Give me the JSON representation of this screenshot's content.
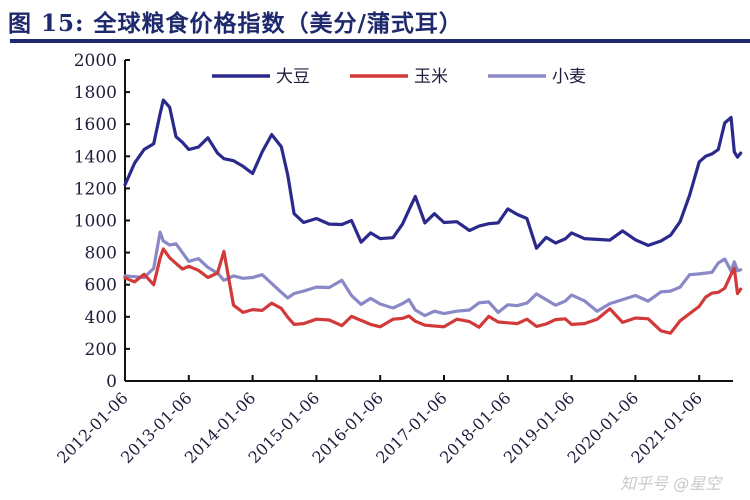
{
  "header": {
    "title": "图 15:  全球粮食价格指数（美分/蒲式耳）"
  },
  "watermark": "知乎号 @星空",
  "chart_data": {
    "type": "line",
    "title": "图 15: 全球粮食价格指数（美分/蒲式耳）",
    "xlabel": "",
    "ylabel": "美分/蒲式耳",
    "ylim": [
      0,
      2000
    ],
    "yticks": [
      0,
      200,
      400,
      600,
      800,
      1000,
      1200,
      1400,
      1600,
      1800,
      2000
    ],
    "xtick_labels": [
      "2012-01-06",
      "2013-01-06",
      "2014-01-06",
      "2015-01-06",
      "2016-01-06",
      "2017-01-06",
      "2018-01-06",
      "2019-01-06",
      "2020-01-06",
      "2021-01-06"
    ],
    "xlim": [
      2012.0,
      2021.65
    ],
    "grid": false,
    "legend_position": "top",
    "x": [
      2012.0,
      2012.15,
      2012.3,
      2012.45,
      2012.55,
      2012.6,
      2012.7,
      2012.8,
      2012.9,
      2013.0,
      2013.15,
      2013.3,
      2013.45,
      2013.55,
      2013.7,
      2013.85,
      2014.0,
      2014.15,
      2014.3,
      2014.45,
      2014.55,
      2014.65,
      2014.8,
      2015.0,
      2015.2,
      2015.4,
      2015.55,
      2015.7,
      2015.85,
      2016.0,
      2016.2,
      2016.35,
      2016.45,
      2016.55,
      2016.7,
      2016.85,
      2017.0,
      2017.2,
      2017.4,
      2017.55,
      2017.7,
      2017.85,
      2018.0,
      2018.15,
      2018.3,
      2018.45,
      2018.6,
      2018.75,
      2018.9,
      2019.0,
      2019.2,
      2019.4,
      2019.6,
      2019.8,
      2020.0,
      2020.2,
      2020.4,
      2020.55,
      2020.7,
      2020.85,
      2021.0,
      2021.1,
      2021.2,
      2021.3,
      2021.4,
      2021.5,
      2021.55,
      2021.6,
      2021.65
    ],
    "series": [
      {
        "name": "大豆",
        "color": "#2b2a8c",
        "values": [
          1200,
          1350,
          1450,
          1500,
          1650,
          1750,
          1720,
          1500,
          1480,
          1450,
          1480,
          1500,
          1420,
          1400,
          1350,
          1330,
          1300,
          1450,
          1520,
          1460,
          1300,
          1020,
          980,
          1020,
          1000,
          960,
          1000,
          880,
          900,
          880,
          900,
          1000,
          1050,
          1150,
          1000,
          1020,
          980,
          1000,
          960,
          950,
          980,
          1000,
          1050,
          1030,
          1020,
          850,
          880,
          860,
          900,
          900,
          880,
          890,
          900,
          920,
          880,
          860,
          850,
          900,
          1000,
          1180,
          1350,
          1400,
          1430,
          1420,
          1600,
          1650,
          1450,
          1380,
          1420
        ]
      },
      {
        "name": "玉米",
        "color": "#d23a3a",
        "values": [
          650,
          640,
          650,
          600,
          780,
          800,
          760,
          740,
          720,
          700,
          690,
          660,
          650,
          800,
          480,
          450,
          430,
          440,
          500,
          430,
          390,
          360,
          380,
          370,
          380,
          360,
          380,
          370,
          360,
          360,
          370,
          390,
          420,
          350,
          340,
          350,
          360,
          370,
          370,
          350,
          380,
          360,
          370,
          380,
          370,
          340,
          370,
          360,
          380,
          360,
          380,
          370,
          450,
          380,
          370,
          380,
          320,
          320,
          360,
          420,
          480,
          500,
          540,
          560,
          600,
          650,
          700,
          560,
          550
        ]
      },
      {
        "name": "小麦",
        "color": "#8a88c6",
        "values": [
          640,
          650,
          660,
          680,
          920,
          880,
          870,
          840,
          800,
          760,
          740,
          700,
          680,
          650,
          640,
          640,
          660,
          640,
          600,
          560,
          540,
          530,
          560,
          600,
          560,
          620,
          540,
          500,
          500,
          480,
          470,
          460,
          500,
          450,
          430,
          420,
          420,
          450,
          420,
          480,
          500,
          450,
          460,
          470,
          500,
          520,
          500,
          480,
          520,
          520,
          500,
          450,
          460,
          500,
          540,
          520,
          540,
          560,
          600,
          640,
          660,
          680,
          700,
          720,
          760,
          700,
          720,
          680,
          700
        ]
      }
    ]
  }
}
